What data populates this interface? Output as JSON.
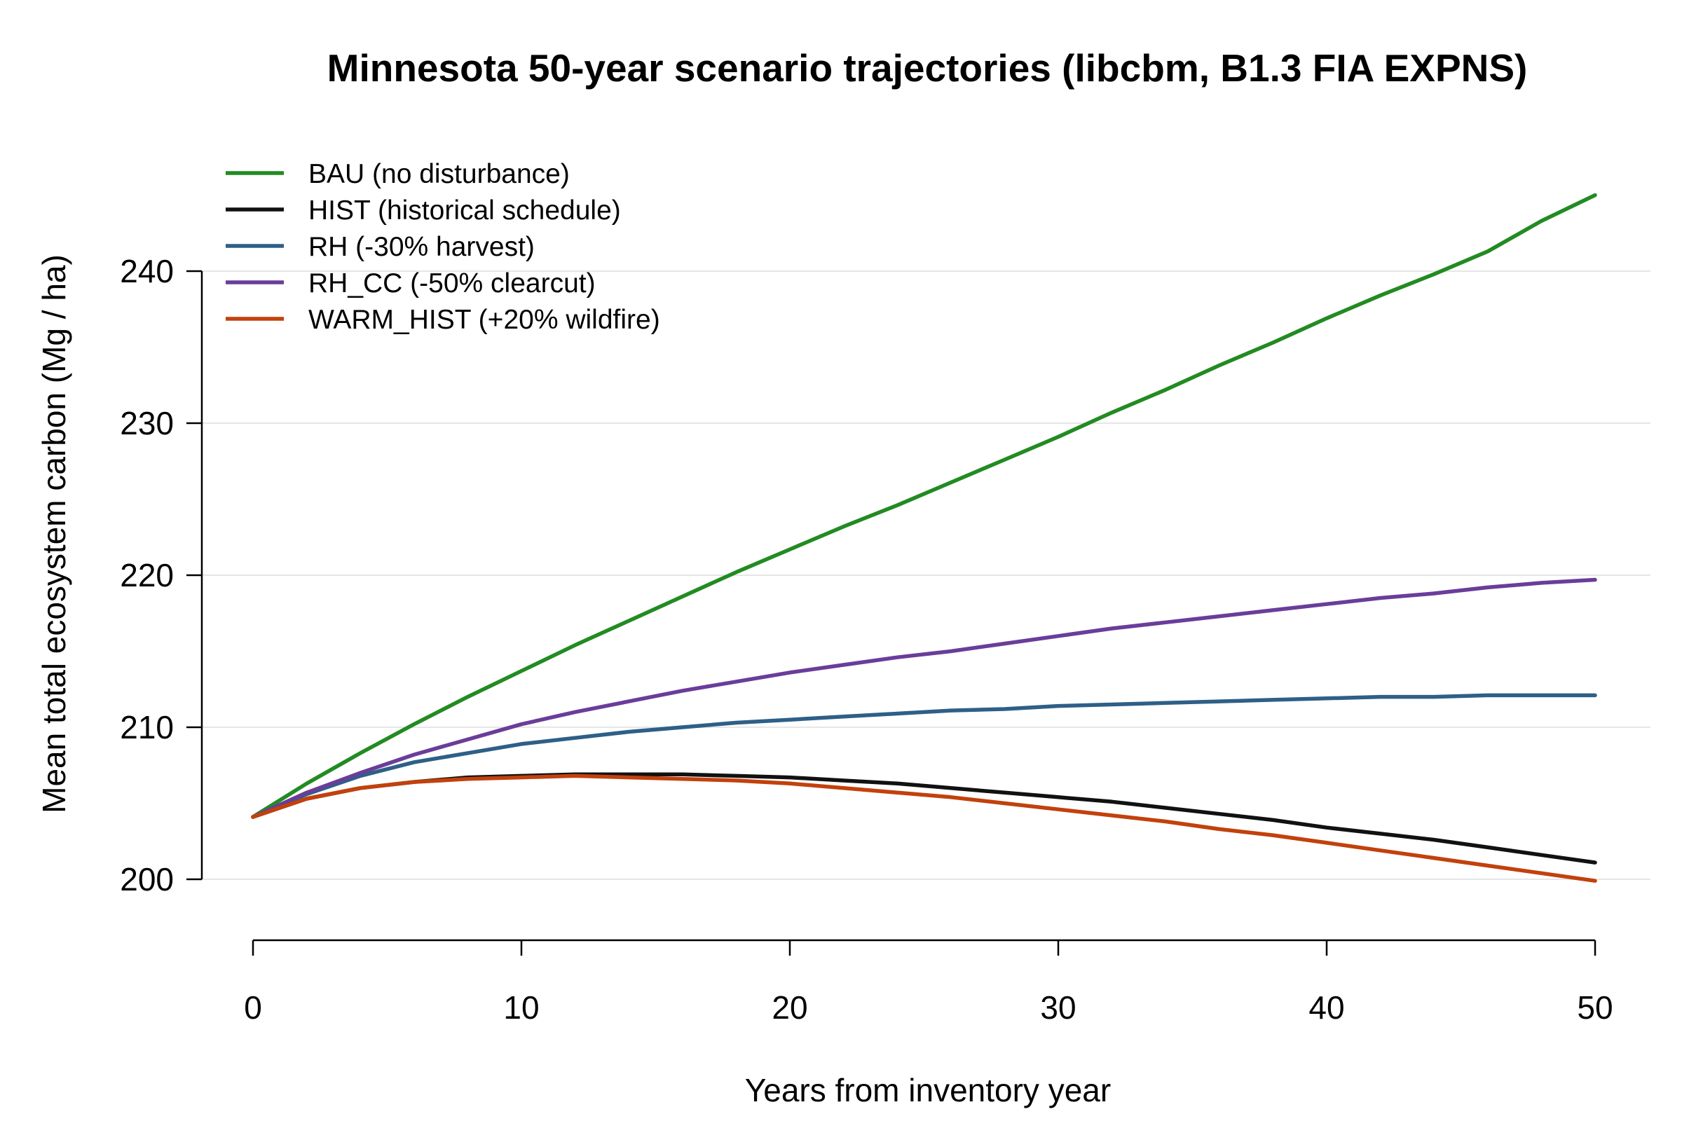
{
  "chart_data": {
    "type": "line",
    "title": "Minnesota 50-year scenario trajectories (libcbm, B1.3 FIA EXPNS)",
    "xlabel": "Years from inventory year",
    "ylabel": "Mean total ecosystem carbon (Mg / ha)",
    "xlim": [
      0,
      50
    ],
    "ylim": [
      200,
      245
    ],
    "x_ticks": [
      0,
      10,
      20,
      30,
      40,
      50
    ],
    "y_ticks": [
      200,
      210,
      220,
      230,
      240
    ],
    "grid": "horizontal",
    "legend_position": "top-left",
    "x": [
      0,
      2,
      4,
      6,
      8,
      10,
      12,
      14,
      16,
      18,
      20,
      22,
      24,
      26,
      28,
      30,
      32,
      34,
      36,
      38,
      40,
      42,
      44,
      46,
      48,
      50
    ],
    "series": [
      {
        "name": "BAU (no disturbance)",
        "color": "#228B22",
        "values": [
          204.1,
          206.3,
          208.3,
          210.2,
          212.0,
          213.7,
          215.4,
          217.0,
          218.6,
          220.2,
          221.7,
          223.2,
          224.6,
          226.1,
          227.6,
          229.1,
          230.7,
          232.2,
          233.8,
          235.3,
          236.9,
          238.4,
          239.8,
          241.3,
          243.3,
          245.0
        ]
      },
      {
        "name": "HIST (historical schedule)",
        "color": "#111111",
        "values": [
          204.1,
          205.3,
          206.0,
          206.4,
          206.7,
          206.8,
          206.9,
          206.9,
          206.9,
          206.8,
          206.7,
          206.5,
          206.3,
          206.0,
          205.7,
          205.4,
          205.1,
          204.7,
          204.3,
          203.9,
          203.4,
          203.0,
          202.6,
          202.1,
          201.6,
          201.1
        ]
      },
      {
        "name": "RH (-30% harvest)",
        "color": "#2E5F87",
        "values": [
          204.1,
          205.6,
          206.8,
          207.7,
          208.3,
          208.9,
          209.3,
          209.7,
          210.0,
          210.3,
          210.5,
          210.7,
          210.9,
          211.1,
          211.2,
          211.4,
          211.5,
          211.6,
          211.7,
          211.8,
          211.9,
          212.0,
          212.0,
          212.1,
          212.1,
          212.1
        ]
      },
      {
        "name": "RH_CC (-50% clearcut)",
        "color": "#6A3D9A",
        "values": [
          204.1,
          205.7,
          207.0,
          208.2,
          209.2,
          210.2,
          211.0,
          211.7,
          212.4,
          213.0,
          213.6,
          214.1,
          214.6,
          215.0,
          215.5,
          216.0,
          216.5,
          216.9,
          217.3,
          217.7,
          218.1,
          218.5,
          218.8,
          219.2,
          219.5,
          219.7
        ]
      },
      {
        "name": "WARM_HIST (+20% wildfire)",
        "color": "#C2410C",
        "values": [
          204.1,
          205.3,
          206.0,
          206.4,
          206.6,
          206.7,
          206.8,
          206.7,
          206.6,
          206.5,
          206.3,
          206.0,
          205.7,
          205.4,
          205.0,
          204.6,
          204.2,
          203.8,
          203.3,
          202.9,
          202.4,
          201.9,
          201.4,
          200.9,
          200.4,
          199.9
        ]
      }
    ]
  }
}
